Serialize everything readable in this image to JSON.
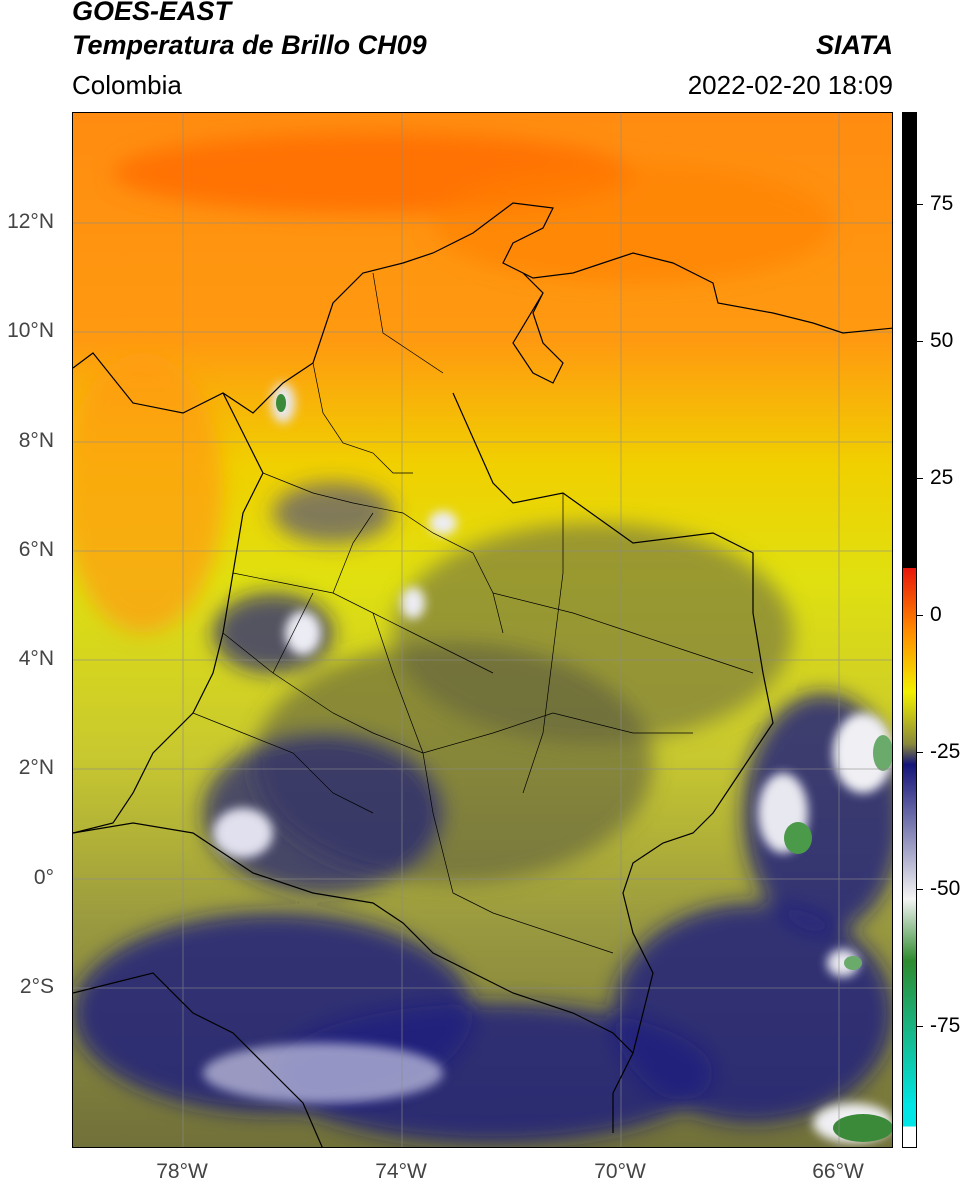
{
  "header": {
    "title_line1": "GOES-EAST",
    "title_line2": "Temperatura de Brillo CH09",
    "region": "Colombia",
    "organization": "SIATA",
    "datetime": "2022-02-20 18:09"
  },
  "map": {
    "lat_labels": [
      "12°N",
      "10°N",
      "8°N",
      "6°N",
      "4°N",
      "2°N",
      "0°",
      "2°S"
    ],
    "lon_labels": [
      "78°W",
      "74°W",
      "70°W",
      "66°W"
    ]
  },
  "colorbar": {
    "tick_labels": [
      "75",
      "50",
      "25",
      "0",
      "-25",
      "-50",
      "-75"
    ],
    "colors": {
      "black": "#000000",
      "red": "#e8160c",
      "orange": "#ff8a00",
      "yellow": "#f2f000",
      "olive": "#8a8a3a",
      "navy": "#15157a",
      "white": "#f4f4f4",
      "green": "#2e8b2e",
      "cyan": "#00e5e5"
    }
  }
}
